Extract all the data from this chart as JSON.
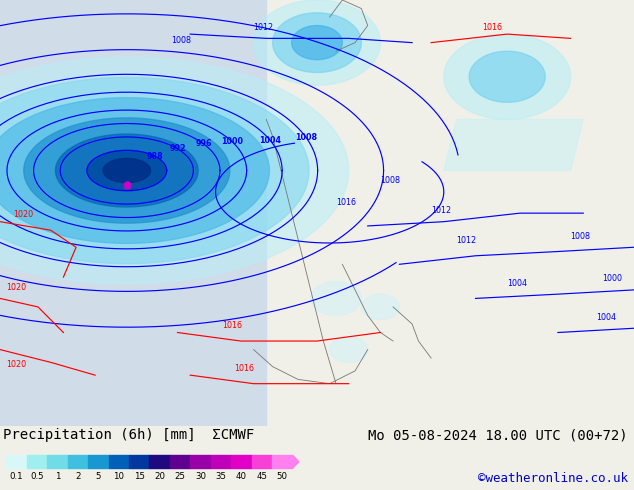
{
  "label_text": "Precipitation (6h) [mm] ECMWF",
  "date_text": "Mo 05-08-2024 18.00 UTC (00+72)",
  "credit_text": "©weatheronline.co.uk",
  "colorbar_levels": [
    0.1,
    0.5,
    1,
    2,
    5,
    10,
    15,
    20,
    25,
    30,
    35,
    40,
    45,
    50
  ],
  "colorbar_colors": [
    "#d8f8f8",
    "#a0eef0",
    "#70dce8",
    "#40c0e0",
    "#1898d0",
    "#0060b8",
    "#0038a0",
    "#200880",
    "#600090",
    "#9800a8",
    "#c000b8",
    "#e000c8",
    "#f840d8",
    "#ff80ee"
  ],
  "bg_color": "#f0f0e8",
  "map_bg": "#c8e8b8",
  "ocean_color": "#d0dce8",
  "font_size_label": 10,
  "font_size_date": 10,
  "font_size_credit": 9
}
